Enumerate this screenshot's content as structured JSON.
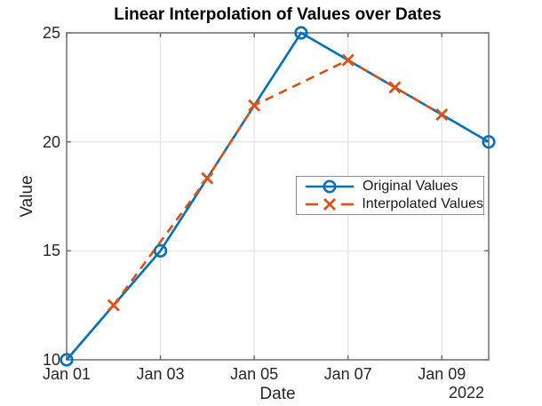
{
  "figure": {
    "title": "Linear Interpolation of Values over Dates",
    "xlabel": "Date",
    "ylabel": "Value",
    "year_label": "2022"
  },
  "chart_data": {
    "type": "line",
    "title": "Linear Interpolation of Values over Dates",
    "xlabel": "Date",
    "ylabel": "Value",
    "x_unit": "date in January 2022",
    "xlim_days": [
      1,
      10
    ],
    "ylim": [
      10,
      25
    ],
    "grid": true,
    "legend_position": "middle-right",
    "x_ticks": [
      {
        "day": 1,
        "label": "Jan 01"
      },
      {
        "day": 3,
        "label": "Jan 03"
      },
      {
        "day": 5,
        "label": "Jan 05"
      },
      {
        "day": 7,
        "label": "Jan 07"
      },
      {
        "day": 9,
        "label": "Jan 09"
      }
    ],
    "x_secondary_label": "2022",
    "y_ticks": [
      10,
      15,
      20,
      25
    ],
    "series": [
      {
        "name": "Original Values",
        "color": "#0072BD",
        "line_style": "solid",
        "marker": "circle",
        "points": [
          {
            "date": "Jan 01",
            "day": 1,
            "value": 10
          },
          {
            "date": "Jan 03",
            "day": 3,
            "value": 15
          },
          {
            "date": "Jan 06",
            "day": 6,
            "value": 25
          },
          {
            "date": "Jan 10",
            "day": 10,
            "value": 20
          }
        ]
      },
      {
        "name": "Interpolated Values",
        "color": "#D95319",
        "line_style": "dashed",
        "marker": "x",
        "points": [
          {
            "date": "Jan 02",
            "day": 2,
            "value": 12.5
          },
          {
            "date": "Jan 04",
            "day": 4,
            "value": 18.33
          },
          {
            "date": "Jan 05",
            "day": 5,
            "value": 21.67
          },
          {
            "date": "Jan 07",
            "day": 7,
            "value": 23.75
          },
          {
            "date": "Jan 08",
            "day": 8,
            "value": 22.5
          },
          {
            "date": "Jan 09",
            "day": 9,
            "value": 21.25
          }
        ]
      }
    ]
  },
  "colors": {
    "axis_box": "#6e6e6e",
    "grid_line": "#e3e3e3",
    "tick_text": "#262626",
    "title_text": "#000000",
    "legend_border": "#8c8c8c"
  }
}
